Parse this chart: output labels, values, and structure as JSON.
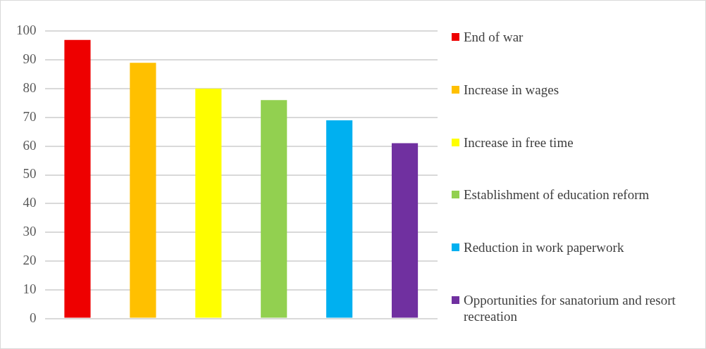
{
  "chart_data": {
    "type": "bar",
    "categories": [
      null,
      null,
      null,
      null,
      null,
      null
    ],
    "series": [
      {
        "name": "End of war",
        "color": "#ee0000",
        "values": [
          97,
          null,
          null,
          null,
          null,
          null
        ]
      },
      {
        "name": "Increase in wages",
        "color": "#ffc000",
        "values": [
          null,
          89,
          null,
          null,
          null,
          null
        ]
      },
      {
        "name": "Increase in free time",
        "color": "#ffff00",
        "values": [
          null,
          null,
          80,
          null,
          null,
          null
        ]
      },
      {
        "name": "Establishment of education reform",
        "color": "#92d050",
        "values": [
          null,
          null,
          null,
          76,
          null,
          null
        ]
      },
      {
        "name": "Reduction in work paperwork",
        "color": "#00b0f0",
        "values": [
          null,
          null,
          null,
          null,
          69,
          null
        ]
      },
      {
        "name": "Opportunities for sanatorium and resort recreation",
        "color": "#7030a0",
        "values": [
          null,
          null,
          null,
          null,
          null,
          61
        ]
      }
    ],
    "ylim": [
      0,
      100
    ],
    "yticks": [
      0,
      10,
      20,
      30,
      40,
      50,
      60,
      70,
      80,
      90,
      100
    ],
    "grid": "y",
    "legend": "right"
  }
}
